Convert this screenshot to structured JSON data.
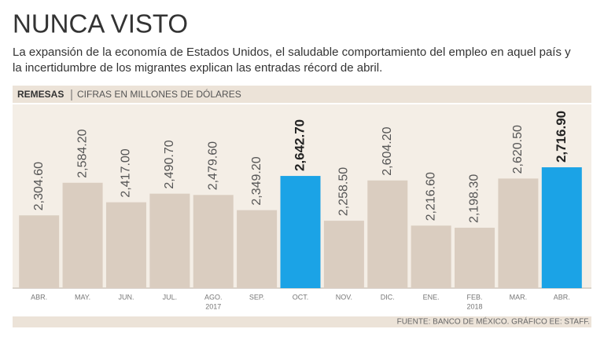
{
  "chart_data": {
    "type": "bar",
    "title": "NUNCA VISTO",
    "subtitle": [
      "La expansión de la economía de Estados Unidos, el saludable comportamiento del empleo en aquel país y",
      "la incertidumbre de los migrantes explican las entradas récord de abril."
    ],
    "section_label": "REMESAS",
    "unit_label": "CIFRAS EN MILLONES DE DÓLARES",
    "categories": [
      "ABR.",
      "MAY.",
      "JUN.",
      "JUL.",
      "AGO.",
      "SEP.",
      "OCT.",
      "NOV.",
      "DIC.",
      "ENE.",
      "FEB.",
      "MAR.",
      "ABR."
    ],
    "year_labels": [
      "2017",
      "2018"
    ],
    "values": [
      2304.6,
      2584.2,
      2417.0,
      2490.7,
      2479.6,
      2349.2,
      2642.7,
      2258.5,
      2604.2,
      2216.6,
      2198.3,
      2620.5,
      2716.9
    ],
    "value_labels": [
      "2,304.60",
      "2,584.20",
      "2,417.00",
      "2,490.70",
      "2,479.60",
      "2,349.20",
      "2,642.70",
      "2,258.50",
      "2,604.20",
      "2,216.60",
      "2,198.30",
      "2,620.50",
      "2,716.90"
    ],
    "color": "#dacdc0",
    "colors": [
      "#dacdc0",
      "#dacdc0",
      "#dacdc0",
      "#dacdc0",
      "#dacdc0",
      "#dacdc0",
      "#1ba3e6",
      "#dacdc0",
      "#dacdc0",
      "#dacdc0",
      "#dacdc0",
      "#dacdc0",
      "#1ba3e6"
    ],
    "ylim": [
      1680,
      3256
    ],
    "source": "FUENTE: BANCO DE MÉXICO. GRÁFICO EE: STAFF."
  }
}
